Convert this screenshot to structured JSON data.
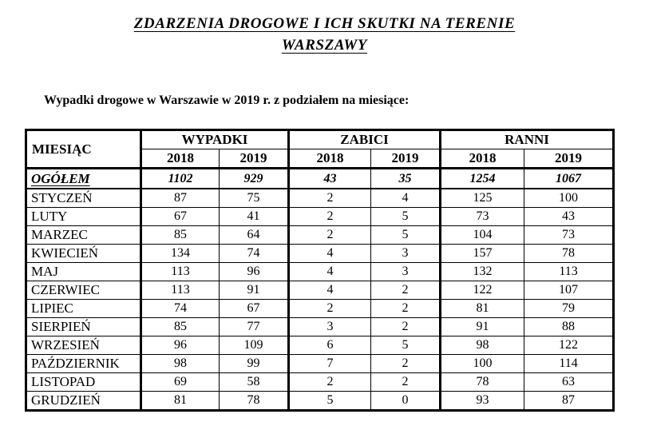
{
  "page": {
    "title_line1": "ZDARZENIA DROGOWE I ICH SKUTKI NA TERENIE",
    "title_line2": "WARSZAWY",
    "subtitle": "Wypadki drogowe w Warszawie w 2019 r. z podziałem na miesiące:"
  },
  "table": {
    "month_header": "MIESIĄC",
    "groups": [
      {
        "label": "WYPADKI",
        "years": [
          "2018",
          "2019"
        ]
      },
      {
        "label": "ZABICI",
        "years": [
          "2018",
          "2019"
        ]
      },
      {
        "label": "RANNI",
        "years": [
          "2018",
          "2019"
        ]
      }
    ],
    "total_row": {
      "label": "OGÓŁEM",
      "values": [
        "1102",
        "929",
        "43",
        "35",
        "1254",
        "1067"
      ]
    },
    "rows": [
      {
        "label": "STYCZEŃ",
        "values": [
          "87",
          "75",
          "2",
          "4",
          "125",
          "100"
        ]
      },
      {
        "label": "LUTY",
        "values": [
          "67",
          "41",
          "2",
          "5",
          "73",
          "43"
        ]
      },
      {
        "label": "MARZEC",
        "values": [
          "85",
          "64",
          "2",
          "5",
          "104",
          "73"
        ]
      },
      {
        "label": "KWIECIEŃ",
        "values": [
          "134",
          "74",
          "4",
          "3",
          "157",
          "78"
        ]
      },
      {
        "label": "MAJ",
        "values": [
          "113",
          "96",
          "4",
          "3",
          "132",
          "113"
        ]
      },
      {
        "label": "CZERWIEC",
        "values": [
          "113",
          "91",
          "4",
          "2",
          "122",
          "107"
        ]
      },
      {
        "label": "LIPIEC",
        "values": [
          "74",
          "67",
          "2",
          "2",
          "81",
          "79"
        ]
      },
      {
        "label": "SIERPIEŃ",
        "values": [
          "85",
          "77",
          "3",
          "2",
          "91",
          "88"
        ]
      },
      {
        "label": "WRZESIEŃ",
        "values": [
          "96",
          "109",
          "6",
          "5",
          "98",
          "122"
        ]
      },
      {
        "label": "PAŹDZIERNIK",
        "values": [
          "98",
          "99",
          "7",
          "2",
          "100",
          "114"
        ]
      },
      {
        "label": "LISTOPAD",
        "values": [
          "69",
          "58",
          "2",
          "2",
          "78",
          "63"
        ]
      },
      {
        "label": "GRUDZIEŃ",
        "values": [
          "81",
          "78",
          "5",
          "0",
          "93",
          "87"
        ]
      }
    ]
  }
}
